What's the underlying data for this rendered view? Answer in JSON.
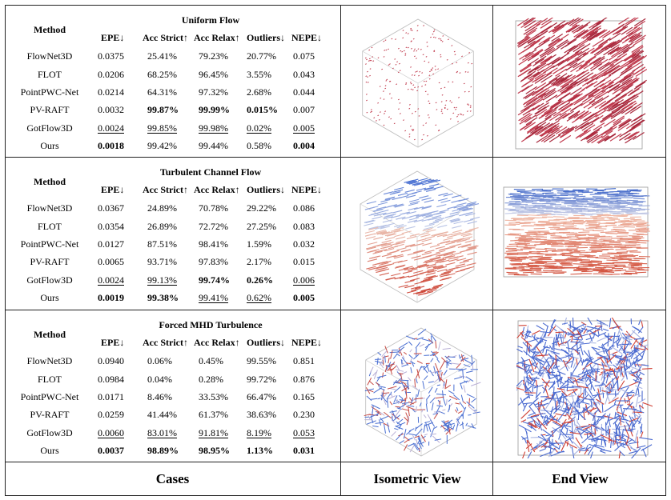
{
  "columns": [
    "Method",
    "EPE↓",
    "Acc Strict↑",
    "Acc Relax↑",
    "Outliers↓",
    "NEPE↓"
  ],
  "panels": [
    {
      "title": "Uniform Flow",
      "rows": [
        {
          "m": "FlowNet3D",
          "v": [
            "0.0375",
            "25.41%",
            "79.23%",
            "20.77%",
            "0.075"
          ]
        },
        {
          "m": "FLOT",
          "v": [
            "0.0206",
            "68.25%",
            "96.45%",
            "3.55%",
            "0.043"
          ]
        },
        {
          "m": "PointPWC-Net",
          "v": [
            "0.0214",
            "64.31%",
            "97.32%",
            "2.68%",
            "0.044"
          ]
        },
        {
          "m": "PV-RAFT",
          "v": [
            "0.0032",
            "99.87%",
            "99.99%",
            "0.015%",
            "0.007"
          ]
        },
        {
          "m": "GotFlow3D",
          "v": [
            "0.0024",
            "99.85%",
            "99.98%",
            "0.02%",
            "0.005"
          ]
        },
        {
          "m": "Ours",
          "v": [
            "0.0018",
            "99.42%",
            "99.44%",
            "0.58%",
            "0.004"
          ]
        }
      ],
      "styles": [
        [
          "",
          "",
          "",
          "",
          ""
        ],
        [
          "",
          "",
          "",
          "",
          ""
        ],
        [
          "",
          "",
          "",
          "",
          ""
        ],
        [
          "",
          "b",
          "b",
          "b",
          ""
        ],
        [
          "u",
          "u",
          "u",
          "u",
          "u"
        ],
        [
          "b",
          "",
          "",
          "",
          "b"
        ]
      ]
    },
    {
      "title": "Turbulent Channel Flow",
      "rows": [
        {
          "m": "FlowNet3D",
          "v": [
            "0.0367",
            "24.89%",
            "70.78%",
            "29.22%",
            "0.086"
          ]
        },
        {
          "m": "FLOT",
          "v": [
            "0.0354",
            "26.89%",
            "72.72%",
            "27.25%",
            "0.083"
          ]
        },
        {
          "m": "PointPWC-Net",
          "v": [
            "0.0127",
            "87.51%",
            "98.41%",
            "1.59%",
            "0.032"
          ]
        },
        {
          "m": "PV-RAFT",
          "v": [
            "0.0065",
            "93.71%",
            "97.83%",
            "2.17%",
            "0.015"
          ]
        },
        {
          "m": "GotFlow3D",
          "v": [
            "0.0024",
            "99.13%",
            "99.74%",
            "0.26%",
            "0.006"
          ]
        },
        {
          "m": "Ours",
          "v": [
            "0.0019",
            "99.38%",
            "99.41%",
            "0.62%",
            "0.005"
          ]
        }
      ],
      "styles": [
        [
          "",
          "",
          "",
          "",
          ""
        ],
        [
          "",
          "",
          "",
          "",
          ""
        ],
        [
          "",
          "",
          "",
          "",
          ""
        ],
        [
          "",
          "",
          "",
          "",
          ""
        ],
        [
          "u",
          "u",
          "b",
          "b",
          "u"
        ],
        [
          "b",
          "b",
          "u",
          "u",
          "b"
        ]
      ]
    },
    {
      "title": "Forced MHD Turbulence",
      "rows": [
        {
          "m": "FlowNet3D",
          "v": [
            "0.0940",
            "0.06%",
            "0.45%",
            "99.55%",
            "0.851"
          ]
        },
        {
          "m": "FLOT",
          "v": [
            "0.0984",
            "0.04%",
            "0.28%",
            "99.72%",
            "0.876"
          ]
        },
        {
          "m": "PointPWC-Net",
          "v": [
            "0.0171",
            "8.46%",
            "33.53%",
            "66.47%",
            "0.165"
          ]
        },
        {
          "m": "PV-RAFT",
          "v": [
            "0.0259",
            "41.44%",
            "61.37%",
            "38.63%",
            "0.230"
          ]
        },
        {
          "m": "GotFlow3D",
          "v": [
            "0.0060",
            "83.01%",
            "91.81%",
            "8.19%",
            "0.053"
          ]
        },
        {
          "m": "Ours",
          "v": [
            "0.0037",
            "98.89%",
            "98.95%",
            "1.13%",
            "0.031"
          ]
        }
      ],
      "styles": [
        [
          "",
          "",
          "",
          "",
          ""
        ],
        [
          "",
          "",
          "",
          "",
          ""
        ],
        [
          "",
          "",
          "",
          "",
          ""
        ],
        [
          "",
          "",
          "",
          "",
          ""
        ],
        [
          "u",
          "u",
          "u",
          "u",
          "u"
        ],
        [
          "b",
          "b",
          "b",
          "b",
          "b"
        ]
      ]
    }
  ],
  "footer": {
    "cases": "Cases",
    "iso": "Isometric View",
    "end": "End View"
  }
}
